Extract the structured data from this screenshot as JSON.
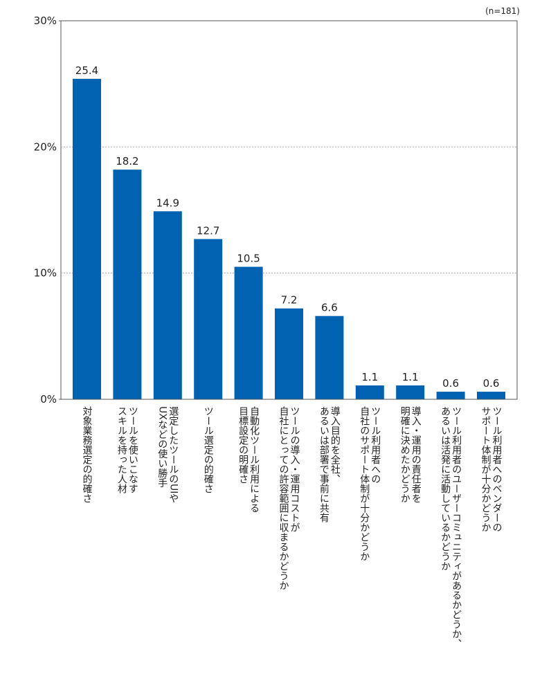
{
  "chart_data": {
    "type": "bar",
    "annotation": "(n=181)",
    "categories": [
      [
        "対象業務選定の的確さ"
      ],
      [
        "ツールを使いこなす",
        "スキルを持った人材"
      ],
      [
        "選定したツールのUIや",
        "UXなどの使い勝手"
      ],
      [
        "ツール選定の的確さ"
      ],
      [
        "自動化ツール利用による",
        "目標設定の明確さ"
      ],
      [
        "ツールの導入・運用コストが",
        "自社にとっての許容範囲に収まるかどうか"
      ],
      [
        "導入目的を全社、",
        "あるいは部署で事前に共有"
      ],
      [
        "ツール利用者への",
        "自社のサポート体制が十分かどうか"
      ],
      [
        "導入・運用の責任者を",
        "明確に決めたかどうか"
      ],
      [
        "ツール利用者のユーザーコミュニティがあるかどうか、",
        "あるいは活発に活動しているかどうか"
      ],
      [
        "ツール利用者へのベンダーの",
        "サポート体制が十分かどうか"
      ]
    ],
    "values": [
      25.4,
      18.2,
      14.9,
      12.7,
      10.5,
      7.2,
      6.6,
      1.1,
      1.1,
      0.6,
      0.6
    ],
    "color": "#0062b1",
    "ylim": [
      0,
      30
    ],
    "yticks": [
      {
        "value": 0,
        "label": "0%"
      },
      {
        "value": 10,
        "label": "10%"
      },
      {
        "value": 20,
        "label": "20%"
      },
      {
        "value": 30,
        "label": "30%"
      }
    ],
    "grid": true
  }
}
